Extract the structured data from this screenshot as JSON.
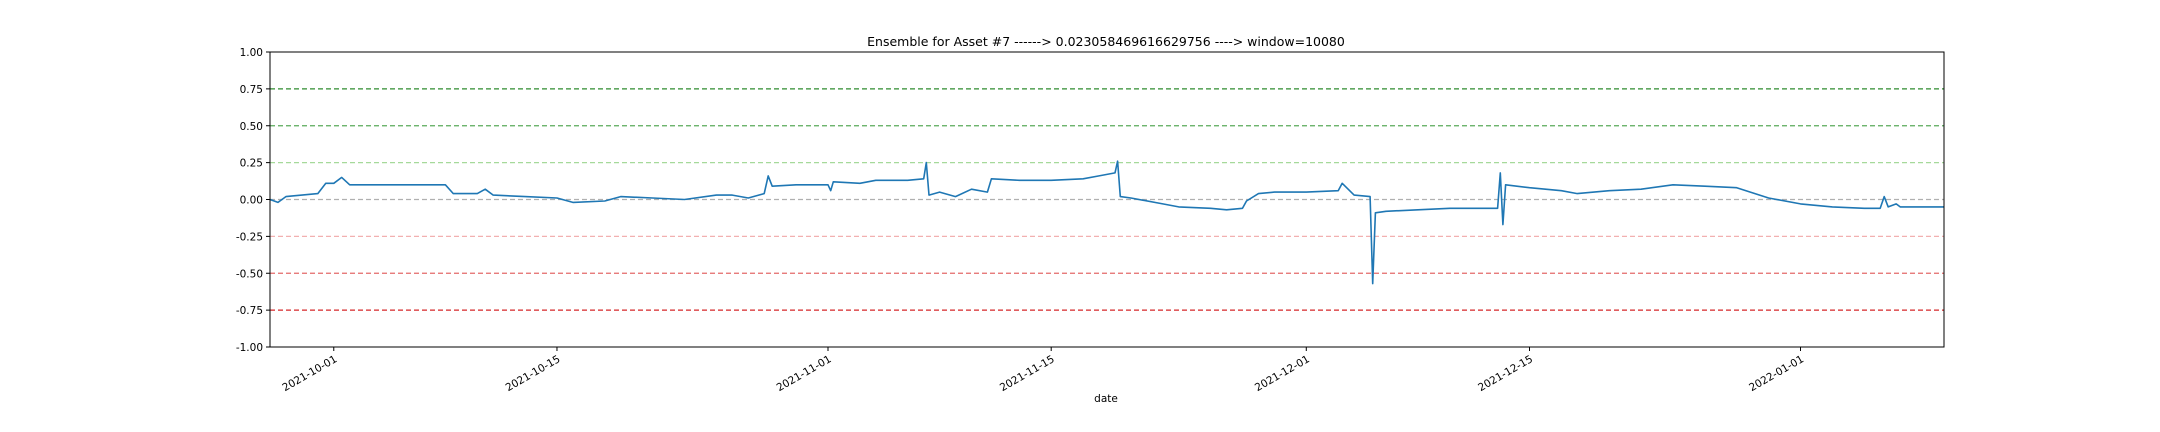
{
  "chart_data": {
    "type": "line",
    "title": "Ensemble for Asset #7 ------> 0.023058469616629756 ----> window=10080",
    "xlabel": "date",
    "ylabel": "",
    "ylim": [
      -1.0,
      1.0
    ],
    "xlim": [
      "2021-09-27",
      "2022-01-10"
    ],
    "grid": false,
    "y_ticks": [
      "1.00",
      "0.75",
      "0.50",
      "0.25",
      "0.00",
      "-0.25",
      "-0.50",
      "-0.75",
      "-1.00"
    ],
    "x_ticks": [
      {
        "date": "2021-10-01",
        "label": "2021-10-01"
      },
      {
        "date": "2021-10-15",
        "label": "2021-10-15"
      },
      {
        "date": "2021-11-01",
        "label": "2021-11-01"
      },
      {
        "date": "2021-11-15",
        "label": "2021-11-15"
      },
      {
        "date": "2021-12-01",
        "label": "2021-12-01"
      },
      {
        "date": "2021-12-15",
        "label": "2021-12-15"
      },
      {
        "date": "2022-01-01",
        "label": "2022-01-01"
      }
    ],
    "reference_lines": [
      {
        "y": 0.75,
        "color": "#2e8b2e"
      },
      {
        "y": 0.5,
        "color": "#5aaa5a"
      },
      {
        "y": 0.25,
        "color": "#a6d99a"
      },
      {
        "y": 0.0,
        "color": "#b0b0b0"
      },
      {
        "y": -0.25,
        "color": "#f2b0b0"
      },
      {
        "y": -0.5,
        "color": "#e46a6a"
      },
      {
        "y": -0.75,
        "color": "#d62728"
      }
    ],
    "series": [
      {
        "color": "#1f77b4",
        "points": [
          [
            "2021-09-27",
            0.0
          ],
          [
            "2021-09-27 12:00",
            -0.02
          ],
          [
            "2021-09-28",
            0.02
          ],
          [
            "2021-09-29",
            0.03
          ],
          [
            "2021-09-30",
            0.04
          ],
          [
            "2021-09-30 12:00",
            0.11
          ],
          [
            "2021-10-01",
            0.11
          ],
          [
            "2021-10-01 12:00",
            0.15
          ],
          [
            "2021-10-02",
            0.1
          ],
          [
            "2021-10-04",
            0.1
          ],
          [
            "2021-10-06",
            0.1
          ],
          [
            "2021-10-08",
            0.1
          ],
          [
            "2021-10-08 12:00",
            0.04
          ],
          [
            "2021-10-10",
            0.04
          ],
          [
            "2021-10-10 12:00",
            0.07
          ],
          [
            "2021-10-11",
            0.03
          ],
          [
            "2021-10-13",
            0.02
          ],
          [
            "2021-10-15",
            0.01
          ],
          [
            "2021-10-16",
            -0.02
          ],
          [
            "2021-10-18",
            -0.01
          ],
          [
            "2021-10-19",
            0.02
          ],
          [
            "2021-10-21",
            0.01
          ],
          [
            "2021-10-23",
            0.0
          ],
          [
            "2021-10-25",
            0.03
          ],
          [
            "2021-10-26",
            0.03
          ],
          [
            "2021-10-27",
            0.01
          ],
          [
            "2021-10-28",
            0.04
          ],
          [
            "2021-10-28 06:00",
            0.16
          ],
          [
            "2021-10-28 12:00",
            0.09
          ],
          [
            "2021-10-30",
            0.1
          ],
          [
            "2021-11-01",
            0.1
          ],
          [
            "2021-11-01 04:00",
            0.06
          ],
          [
            "2021-11-01 08:00",
            0.12
          ],
          [
            "2021-11-03",
            0.11
          ],
          [
            "2021-11-04",
            0.13
          ],
          [
            "2021-11-06",
            0.13
          ],
          [
            "2021-11-07",
            0.14
          ],
          [
            "2021-11-07 04:00",
            0.25
          ],
          [
            "2021-11-07 08:00",
            0.03
          ],
          [
            "2021-11-08",
            0.05
          ],
          [
            "2021-11-09",
            0.02
          ],
          [
            "2021-11-10",
            0.07
          ],
          [
            "2021-11-11",
            0.05
          ],
          [
            "2021-11-11 06:00",
            0.14
          ],
          [
            "2021-11-13",
            0.13
          ],
          [
            "2021-11-15",
            0.13
          ],
          [
            "2021-11-17",
            0.14
          ],
          [
            "2021-11-18",
            0.16
          ],
          [
            "2021-11-19",
            0.18
          ],
          [
            "2021-11-19 04:00",
            0.26
          ],
          [
            "2021-11-19 08:00",
            0.02
          ],
          [
            "2021-11-20",
            0.01
          ],
          [
            "2021-11-22",
            -0.03
          ],
          [
            "2021-11-23",
            -0.05
          ],
          [
            "2021-11-25",
            -0.06
          ],
          [
            "2021-11-26",
            -0.07
          ],
          [
            "2021-11-27",
            -0.06
          ],
          [
            "2021-11-27 06:00",
            -0.01
          ],
          [
            "2021-11-28",
            0.04
          ],
          [
            "2021-11-29",
            0.05
          ],
          [
            "2021-12-01",
            0.05
          ],
          [
            "2021-12-03",
            0.06
          ],
          [
            "2021-12-03 06:00",
            0.11
          ],
          [
            "2021-12-04",
            0.03
          ],
          [
            "2021-12-05",
            0.02
          ],
          [
            "2021-12-05 04:00",
            -0.57
          ],
          [
            "2021-12-05 08:00",
            -0.09
          ],
          [
            "2021-12-06",
            -0.08
          ],
          [
            "2021-12-08",
            -0.07
          ],
          [
            "2021-12-10",
            -0.06
          ],
          [
            "2021-12-12",
            -0.06
          ],
          [
            "2021-12-13",
            -0.06
          ],
          [
            "2021-12-13 04:00",
            0.18
          ],
          [
            "2021-12-13 08:00",
            -0.17
          ],
          [
            "2021-12-13 12:00",
            0.1
          ],
          [
            "2021-12-15",
            0.08
          ],
          [
            "2021-12-17",
            0.06
          ],
          [
            "2021-12-18",
            0.04
          ],
          [
            "2021-12-20",
            0.06
          ],
          [
            "2021-12-22",
            0.07
          ],
          [
            "2021-12-24",
            0.1
          ],
          [
            "2021-12-26",
            0.09
          ],
          [
            "2021-12-28",
            0.08
          ],
          [
            "2021-12-30",
            0.01
          ],
          [
            "2022-01-01",
            -0.03
          ],
          [
            "2022-01-03",
            -0.05
          ],
          [
            "2022-01-05",
            -0.06
          ],
          [
            "2022-01-06",
            -0.06
          ],
          [
            "2022-01-06 06:00",
            0.02
          ],
          [
            "2022-01-06 12:00",
            -0.05
          ],
          [
            "2022-01-07",
            -0.03
          ],
          [
            "2022-01-07 06:00",
            -0.05
          ],
          [
            "2022-01-08",
            -0.05
          ],
          [
            "2022-01-09",
            -0.05
          ],
          [
            "2022-01-10",
            -0.05
          ]
        ]
      }
    ]
  }
}
